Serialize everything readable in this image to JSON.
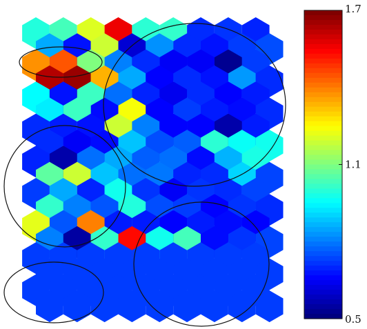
{
  "chart_data": {
    "type": "heatmap",
    "title": "",
    "xlabel": "",
    "ylabel": "",
    "grid": false,
    "legend": "right",
    "colormap": "jet",
    "colorbar": {
      "min": 0.5,
      "max": 1.7,
      "ticks": [
        1.7,
        1.1,
        0.5
      ],
      "tick_labels": [
        "1.7",
        "1.1",
        "0.5"
      ]
    },
    "hex_grid": {
      "rows": 20,
      "cols": 10,
      "rows_top_to_bottom": [
        [
          0.99,
          1.03,
          1.21,
          1.57,
          1.0,
          1.01,
          0.7,
          0.71,
          0.69,
          0.69
        ],
        [
          0.85,
          0.67,
          1.19,
          0.6,
          0.82,
          0.7,
          0.67,
          0.72,
          0.74,
          0.69
        ],
        [
          1.38,
          1.45,
          1.1,
          0.8,
          0.7,
          0.64,
          0.64,
          0.52,
          0.72,
          0.7
        ],
        [
          1.64,
          1.67,
          1.34,
          0.85,
          0.65,
          0.7,
          0.67,
          0.83,
          0.7,
          0.68
        ],
        [
          0.95,
          0.67,
          1.02,
          0.78,
          0.69,
          0.63,
          0.7,
          0.65,
          0.68,
          0.7
        ],
        [
          0.93,
          1.02,
          0.66,
          1.24,
          0.65,
          0.72,
          0.68,
          0.66,
          0.7,
          0.71
        ],
        [
          0.7,
          0.68,
          0.67,
          1.19,
          0.8,
          0.65,
          0.65,
          0.55,
          0.68,
          0.72
        ],
        [
          0.7,
          0.64,
          0.66,
          0.88,
          0.74,
          0.76,
          1.0,
          0.96,
          0.97,
          0.72
        ],
        [
          0.69,
          0.55,
          0.78,
          0.85,
          0.76,
          0.78,
          0.66,
          0.86,
          0.98,
          0.72
        ],
        [
          1.06,
          1.19,
          0.88,
          0.78,
          0.79,
          0.69,
          0.7,
          0.9,
          0.73,
          0.72
        ],
        [
          0.72,
          0.85,
          0.69,
          0.97,
          0.71,
          0.64,
          0.71,
          0.7,
          0.73,
          0.72
        ],
        [
          1.01,
          0.8,
          0.75,
          0.99,
          0.74,
          0.72,
          0.65,
          0.71,
          0.7,
          0.72
        ],
        [
          1.22,
          0.75,
          1.4,
          0.68,
          0.68,
          0.65,
          0.68,
          0.66,
          0.65,
          0.72
        ],
        [
          0.8,
          0.54,
          1.01,
          1.54,
          0.97,
          1.03,
          0.66,
          0.71,
          0.73,
          0.72
        ],
        [
          0.72,
          0.72,
          0.72,
          0.72,
          0.72,
          0.72,
          0.72,
          0.72,
          0.72,
          0.72
        ],
        [
          0.72,
          0.72,
          0.72,
          0.72,
          0.72,
          0.72,
          0.72,
          0.72,
          0.72,
          0.72
        ],
        [
          0.72,
          0.72,
          0.72,
          0.72,
          0.72,
          0.72,
          0.72,
          0.72,
          0.72,
          0.72
        ],
        [
          0.72,
          0.72,
          0.72,
          0.72,
          0.72,
          0.72,
          0.72,
          0.72,
          0.72,
          0.72
        ],
        [
          0.72,
          0.72,
          0.72,
          0.72,
          0.72,
          0.72,
          0.72,
          0.72,
          0.72,
          0.72
        ],
        [
          0.72,
          0.72,
          0.72,
          0.72,
          0.72,
          0.72,
          0.72,
          0.72,
          0.72,
          0.72
        ]
      ]
    },
    "annotations": [
      "circle",
      "ellipse",
      "circle",
      "circle",
      "ellipse"
    ]
  }
}
